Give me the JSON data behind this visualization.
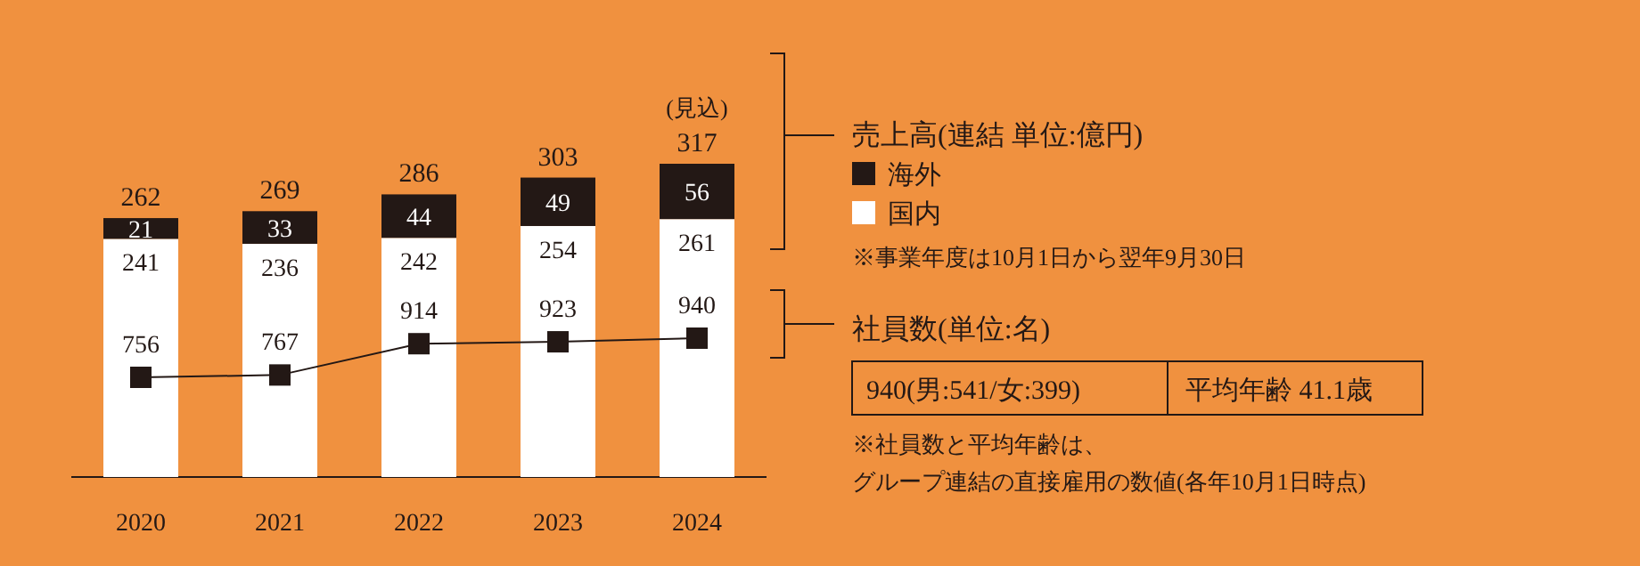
{
  "chart_data": {
    "type": "bar",
    "stacked": true,
    "categories": [
      "2020",
      "2021",
      "2022",
      "2023",
      "2024"
    ],
    "series": [
      {
        "name": "国内",
        "color": "#ffffff",
        "values": [
          241,
          236,
          242,
          254,
          261
        ]
      },
      {
        "name": "海外",
        "color": "#231815",
        "values": [
          21,
          33,
          44,
          49,
          56
        ]
      },
      {
        "name": "社員数(単位:名)",
        "type": "line",
        "axis": "y2",
        "color": "#231815",
        "marker": "square",
        "values": [
          756,
          767,
          914,
          923,
          940
        ]
      }
    ],
    "totals": [
      "262",
      "269",
      "286",
      "303",
      "317"
    ],
    "data_labels": true,
    "legend": "right",
    "legend_title": "売上高(連結 単位:億円)",
    "annotations": [
      {
        "text": "(見込)",
        "x": "2024",
        "y": 317
      },
      "※事業年度は10月1日から翌年9月30日",
      "940(男:541/女:399)",
      "平均年齢 41.1歳",
      "※社員数と平均年齢は、",
      "グループ連結の直接雇用の数値(各年10月1日時点)"
    ]
  }
}
